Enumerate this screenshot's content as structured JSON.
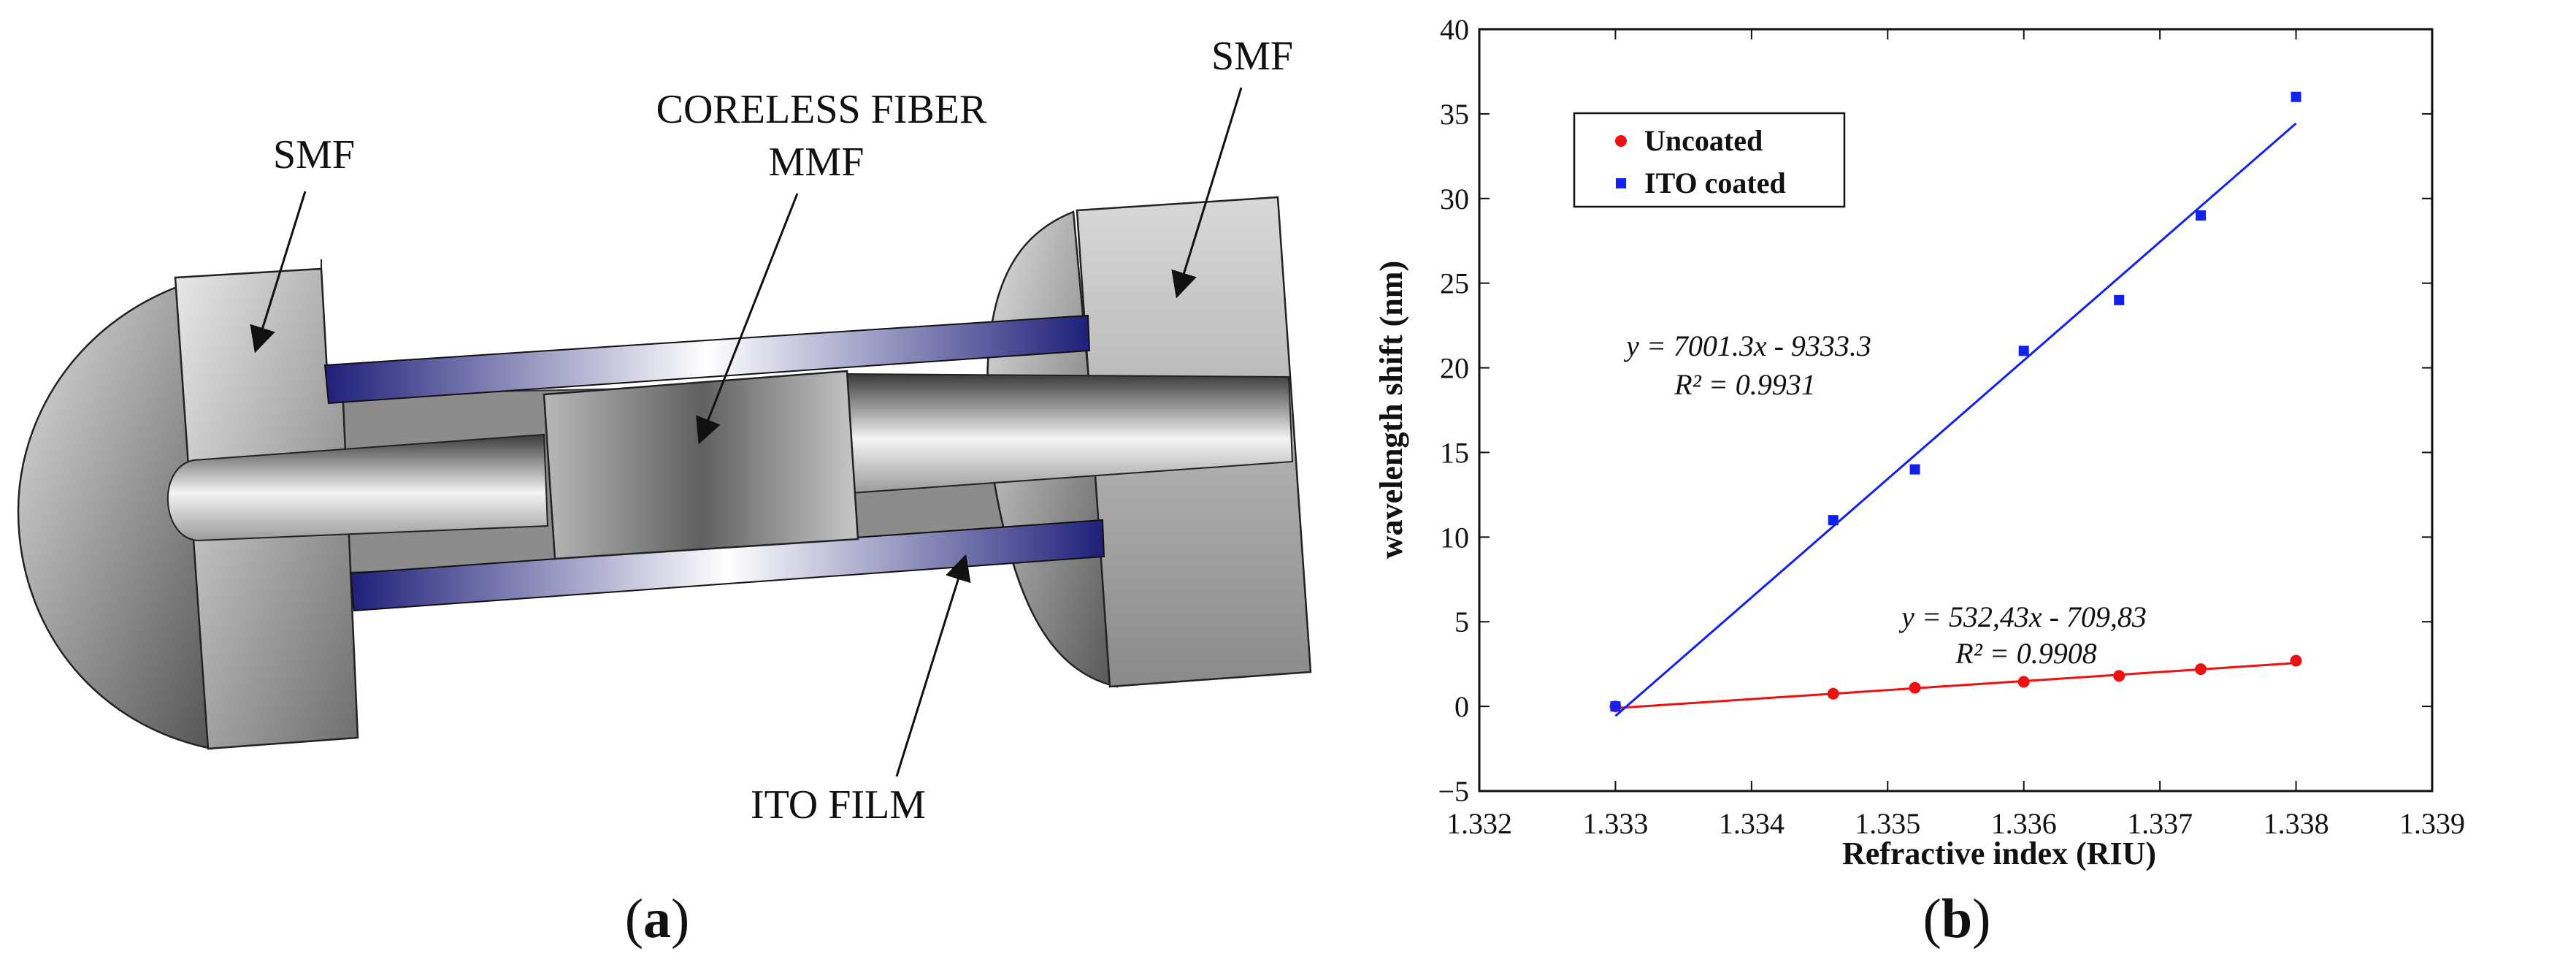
{
  "panel_a": {
    "tag_open": "(",
    "tag_letter": "a",
    "tag_close": ")",
    "labels": {
      "smf_left": "SMF",
      "smf_right": "SMF",
      "coreless_fiber": "CORELESS FIBER",
      "mmf": "MMF",
      "ito_film": "ITO FILM"
    },
    "colors": {
      "ito_dark": "#1f1f7a",
      "ito_light": "#ffffff",
      "metal_dark": "#6b6b6b",
      "metal_light": "#e6e6e6"
    }
  },
  "panel_b": {
    "tag_open": "(",
    "tag_letter": "b",
    "tag_close": ")"
  },
  "chart_data": {
    "type": "scatter",
    "xlabel": "Refractive index (RIU)",
    "ylabel": "wavelength shift (nm)",
    "xlim": [
      1.332,
      1.339
    ],
    "ylim": [
      -5,
      40
    ],
    "xticks": [
      "1.332",
      "1.333",
      "1.334",
      "1.335",
      "1.336",
      "1.337",
      "1.338",
      "1.339"
    ],
    "yticks": [
      "−5",
      "0",
      "5",
      "10",
      "15",
      "20",
      "25",
      "30",
      "35",
      "40"
    ],
    "legend_position": "top-left",
    "series": [
      {
        "name": "Uncoated",
        "color": "#ee1111",
        "marker": "circle",
        "x": [
          1.333,
          1.3346,
          1.3352,
          1.336,
          1.3367,
          1.3373,
          1.338
        ],
        "y": [
          0,
          0.75,
          1.1,
          1.45,
          1.8,
          2.2,
          2.7
        ],
        "fit": {
          "slope": 532.43,
          "intercept": -709.83,
          "x_range": [
            1.333,
            1.338
          ]
        },
        "equation": "y = 532,43x - 709,83",
        "r2": "R² = 0.9908"
      },
      {
        "name": "ITO coated",
        "color": "#1122ee",
        "marker": "square",
        "x": [
          1.333,
          1.3346,
          1.3352,
          1.336,
          1.3367,
          1.3373,
          1.338
        ],
        "y": [
          0,
          11,
          14,
          21,
          24,
          29,
          36
        ],
        "fit": {
          "slope": 7001.3,
          "intercept": -9333.3,
          "x_range": [
            1.333,
            1.338
          ]
        },
        "equation": "y = 7001.3x - 9333.3",
        "r2": "R² = 0.9931"
      }
    ]
  }
}
